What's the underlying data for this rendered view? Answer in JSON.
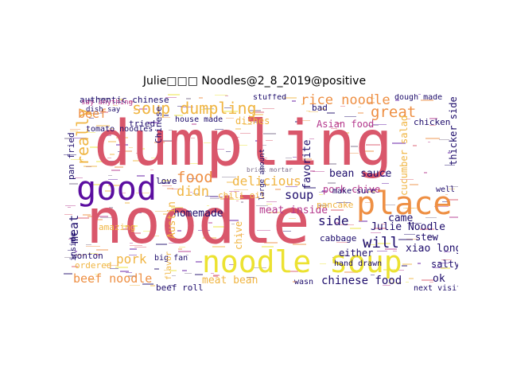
{
  "title": "Julie□□□ Noodles@2_8_2019@positive",
  "palette": {
    "rose": "#d9576b",
    "yellow": "#ece231",
    "orange": "#ee8f43",
    "gold": "#f0b542",
    "purple": "#5b0ea0",
    "navy": "#1d0c6b",
    "magenta": "#b4388d",
    "gray": "#7a6c8a"
  },
  "words": [
    {
      "id": "dumpling",
      "text": "dumpling",
      "color": "rose"
    },
    {
      "id": "noodle",
      "text": "noodle",
      "color": "rose"
    },
    {
      "id": "noodle-soup",
      "text": "noodle soup",
      "color": "yellow"
    },
    {
      "id": "good",
      "text": "good",
      "color": "purple"
    },
    {
      "id": "place",
      "text": "place",
      "color": "orange"
    },
    {
      "id": "soup-dumpling",
      "text": "soup dumpling",
      "color": "gold"
    },
    {
      "id": "rice-noodle",
      "text": "rice noodle",
      "color": "orange"
    },
    {
      "id": "great",
      "text": "great",
      "color": "orange"
    },
    {
      "id": "food",
      "text": "food",
      "color": "orange"
    },
    {
      "id": "really",
      "text": "really",
      "color": "gold"
    },
    {
      "id": "beef",
      "text": "beef",
      "color": "orange"
    },
    {
      "id": "didn",
      "text": "didn",
      "color": "gold"
    },
    {
      "id": "delicious",
      "text": "delicious",
      "color": "gold"
    },
    {
      "id": "soup",
      "text": "soup",
      "color": "navy"
    },
    {
      "id": "bean-sauce",
      "text": "bean sauce",
      "color": "navy"
    },
    {
      "id": "pork-chive",
      "text": "pork chive",
      "color": "magenta"
    },
    {
      "id": "side",
      "text": "side",
      "color": "navy"
    },
    {
      "id": "came",
      "text": "came",
      "color": "navy"
    },
    {
      "id": "julie-noodle",
      "text": "Julie Noodle",
      "color": "navy"
    },
    {
      "id": "will",
      "text": "will",
      "color": "navy"
    },
    {
      "id": "stew",
      "text": "stew",
      "color": "navy"
    },
    {
      "id": "xiao-long",
      "text": "xiao long",
      "color": "navy"
    },
    {
      "id": "salty",
      "text": "salty",
      "color": "navy"
    },
    {
      "id": "pork",
      "text": "pork",
      "color": "gold"
    },
    {
      "id": "big-fan",
      "text": "big fan",
      "color": "navy"
    },
    {
      "id": "beef-noodle",
      "text": "beef noodle",
      "color": "orange"
    },
    {
      "id": "meat-bean",
      "text": "meat bean",
      "color": "gold"
    },
    {
      "id": "chinese-food",
      "text": "chinese food",
      "color": "navy"
    },
    {
      "id": "homemade",
      "text": "homemade",
      "color": "navy"
    },
    {
      "id": "amazing",
      "text": "amazing",
      "color": "gold"
    },
    {
      "id": "meat",
      "text": "meat",
      "color": "navy"
    },
    {
      "id": "authentic-chinese",
      "text": "authentic chinese",
      "color": "navy"
    },
    {
      "id": "tried",
      "text": "tried",
      "color": "navy"
    },
    {
      "id": "asian-food",
      "text": "Asian food",
      "color": "magenta"
    },
    {
      "id": "chicken",
      "text": "chicken",
      "color": "navy"
    },
    {
      "id": "favorite",
      "text": "favorite",
      "color": "navy"
    },
    {
      "id": "well",
      "text": "well",
      "color": "navy"
    },
    {
      "id": "ok",
      "text": "ok",
      "color": "navy"
    },
    {
      "id": "wonton",
      "text": "wonton",
      "color": "navy"
    },
    {
      "id": "love",
      "text": "love",
      "color": "navy"
    },
    {
      "id": "austin",
      "text": "Austin",
      "color": "gold"
    },
    {
      "id": "chive",
      "text": "chive",
      "color": "gold"
    },
    {
      "id": "chili-oil",
      "text": "chili oil",
      "color": "gold"
    },
    {
      "id": "cabbage",
      "text": "cabbage",
      "color": "navy"
    },
    {
      "id": "either",
      "text": "either",
      "color": "navy"
    },
    {
      "id": "hand-drawn",
      "text": "hand drawn",
      "color": "navy"
    },
    {
      "id": "meat-inside",
      "text": "meat inside",
      "color": "magenta"
    },
    {
      "id": "make-sure",
      "text": "make sure",
      "color": "navy"
    },
    {
      "id": "pancake",
      "text": "pancake",
      "color": "gold"
    },
    {
      "id": "tomato-noodles",
      "text": "tomato noodles",
      "color": "navy"
    },
    {
      "id": "ordered",
      "text": "ordered",
      "color": "gold"
    },
    {
      "id": "inside",
      "text": "inside",
      "color": "navy"
    },
    {
      "id": "beef-roll",
      "text": "beef roll",
      "color": "navy"
    },
    {
      "id": "wasn",
      "text": "wasn",
      "color": "navy"
    },
    {
      "id": "next-visit",
      "text": "next visit",
      "color": "navy"
    },
    {
      "id": "dough-made",
      "text": "dough made",
      "color": "navy"
    },
    {
      "id": "bad",
      "text": "bad",
      "color": "navy"
    },
    {
      "id": "stuffed",
      "text": "stuffed",
      "color": "navy"
    },
    {
      "id": "house-made",
      "text": "house made",
      "color": "navy"
    },
    {
      "id": "dishes",
      "text": "dishes",
      "color": "gold"
    },
    {
      "id": "pan-fried",
      "text": "pan fried",
      "color": "navy"
    },
    {
      "id": "chinese",
      "text": "Chinese",
      "color": "navy"
    },
    {
      "id": "thicker-side",
      "text": "thicker side",
      "color": "navy"
    },
    {
      "id": "cucumber-salad",
      "text": "cucumber salad",
      "color": "gold"
    },
    {
      "id": "flavor",
      "text": "flavor",
      "color": "gold"
    },
    {
      "id": "say-anything",
      "text": "say anything",
      "color": "magenta"
    },
    {
      "id": "dish-say",
      "text": "dish say",
      "color": "navy"
    },
    {
      "id": "large-amount",
      "text": "large amount",
      "color": "navy"
    },
    {
      "id": "brick-mortar",
      "text": "brick mortar",
      "color": "gray"
    }
  ]
}
